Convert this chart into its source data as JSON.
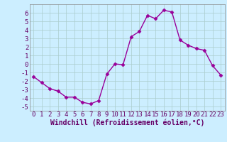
{
  "x": [
    0,
    1,
    2,
    3,
    4,
    5,
    6,
    7,
    8,
    9,
    10,
    11,
    12,
    13,
    14,
    15,
    16,
    17,
    18,
    19,
    20,
    21,
    22,
    23
  ],
  "y": [
    -1.5,
    -2.2,
    -2.9,
    -3.2,
    -3.9,
    -3.9,
    -4.5,
    -4.7,
    -4.3,
    -1.2,
    0.0,
    -0.1,
    3.2,
    3.8,
    5.7,
    5.3,
    6.3,
    6.1,
    2.8,
    2.2,
    1.8,
    1.6,
    -0.2,
    -1.3
  ],
  "line_color": "#990099",
  "marker": "D",
  "markersize": 2.5,
  "linewidth": 1.0,
  "xlabel": "Windchill (Refroidissement éolien,°C)",
  "xlabel_fontsize": 7,
  "xlim": [
    -0.5,
    23.5
  ],
  "ylim": [
    -5.5,
    7.0
  ],
  "yticks": [
    -5,
    -4,
    -3,
    -2,
    -1,
    0,
    1,
    2,
    3,
    4,
    5,
    6
  ],
  "xticks": [
    0,
    1,
    2,
    3,
    4,
    5,
    6,
    7,
    8,
    9,
    10,
    11,
    12,
    13,
    14,
    15,
    16,
    17,
    18,
    19,
    20,
    21,
    22,
    23
  ],
  "background_color": "#cceeff",
  "grid_color": "#aacccc",
  "tick_fontsize": 6.5,
  "label_color": "#660066"
}
